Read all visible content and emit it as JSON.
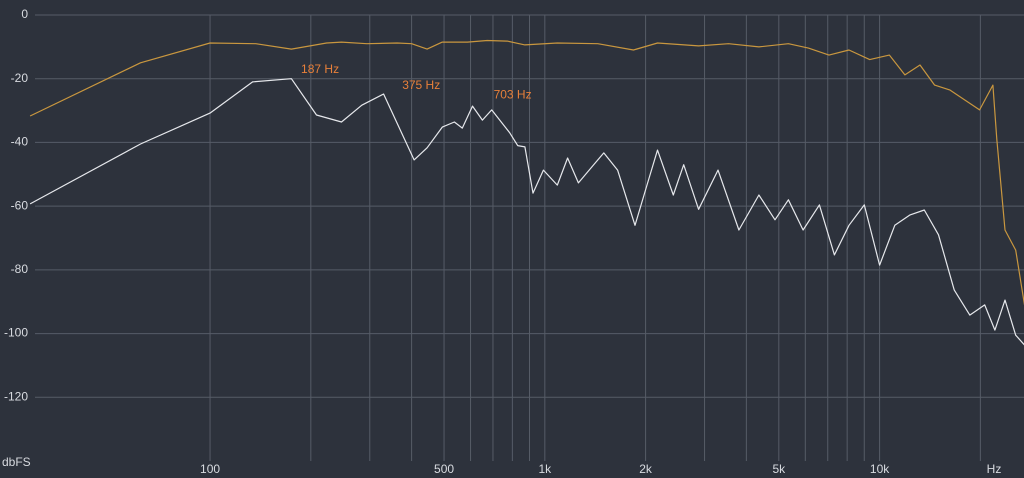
{
  "chart_data": {
    "type": "line",
    "x_label": "Hz",
    "y_label": "dbFS",
    "log_x": true,
    "grid": true,
    "xlim": [
      30,
      27000
    ],
    "ylim": [
      -140,
      0
    ],
    "yticks": [
      0,
      -20,
      -40,
      -60,
      -80,
      -100,
      -120
    ],
    "xticks": [
      100,
      500,
      {
        "value": 1000,
        "label": "1k"
      },
      {
        "value": 2000,
        "label": "2k"
      },
      {
        "value": 5000,
        "label": "5k"
      },
      {
        "value": 10000,
        "label": "10k"
      }
    ],
    "xgrid": [
      200,
      300,
      400,
      600,
      700,
      800,
      900,
      3000,
      4000,
      6000,
      7000,
      8000,
      9000,
      20000
    ],
    "series": [
      {
        "color": "#c9973f",
        "x": [
          29,
          62,
          100,
          137,
          175,
          223,
          247,
          294,
          362,
          400,
          445,
          494,
          587,
          673,
          773,
          872,
          1090,
          1440,
          1840,
          2170,
          2880,
          3540,
          4360,
          5340,
          6130,
          7060,
          8100,
          9340,
          10700,
          11900,
          13200,
          14600,
          16200,
          18000,
          19900,
          21800,
          22400,
          23700,
          25500,
          27100
        ],
        "values": [
          -31.7,
          -15,
          -8.8,
          -9,
          -10.7,
          -8.8,
          -8.5,
          -9,
          -8.8,
          -9,
          -10.7,
          -8.5,
          -8.5,
          -8,
          -8.2,
          -9.4,
          -8.8,
          -9,
          -11,
          -8.8,
          -9.7,
          -9,
          -10,
          -9,
          -10.4,
          -12.6,
          -11,
          -14,
          -12.6,
          -18.8,
          -15.7,
          -22,
          -23.5,
          -26.7,
          -29.8,
          -22,
          -39,
          -67.5,
          -73.8,
          -91
        ]
      },
      {
        "color": "#e6e8ec",
        "x": [
          29,
          62,
          100,
          134,
          175,
          208,
          247,
          284,
          330,
          407,
          445,
          494,
          537,
          567,
          608,
          651,
          694,
          786,
          830,
          872,
          922,
          990,
          1090,
          1170,
          1260,
          1400,
          1500,
          1650,
          1860,
          2040,
          2170,
          2420,
          2600,
          2880,
          3290,
          3800,
          4360,
          4870,
          5340,
          5910,
          6610,
          7330,
          8100,
          9000,
          10000,
          11100,
          12300,
          13600,
          15000,
          16700,
          18600,
          20600,
          22100,
          23700,
          25500,
          27100
        ],
        "values": [
          -59.3,
          -40.5,
          -30.8,
          -21,
          -20,
          -31.4,
          -33.6,
          -28.3,
          -24.8,
          -45.5,
          -41.7,
          -35.2,
          -33.6,
          -35.5,
          -28.6,
          -33,
          -29.8,
          -37,
          -41,
          -41.4,
          -55.9,
          -48.7,
          -53.4,
          -44.9,
          -52.7,
          -47,
          -43.3,
          -48.7,
          -66,
          -51.8,
          -42.4,
          -56.5,
          -47,
          -61,
          -48.7,
          -67.5,
          -56.5,
          -64.3,
          -58,
          -67.5,
          -59.6,
          -75.3,
          -66,
          -59.6,
          -78.5,
          -66,
          -62.8,
          -61.2,
          -69,
          -86.3,
          -94.2,
          -91,
          -98.9,
          -89.5,
          -100.5,
          -103.6
        ]
      }
    ],
    "annotations": [
      {
        "text": "187 Hz",
        "x": 187,
        "y": -20
      },
      {
        "text": "375 Hz",
        "x": 375,
        "y": -25
      },
      {
        "text": "703 Hz",
        "x": 703,
        "y": -28
      }
    ],
    "annotation_color": "#e8803a"
  }
}
